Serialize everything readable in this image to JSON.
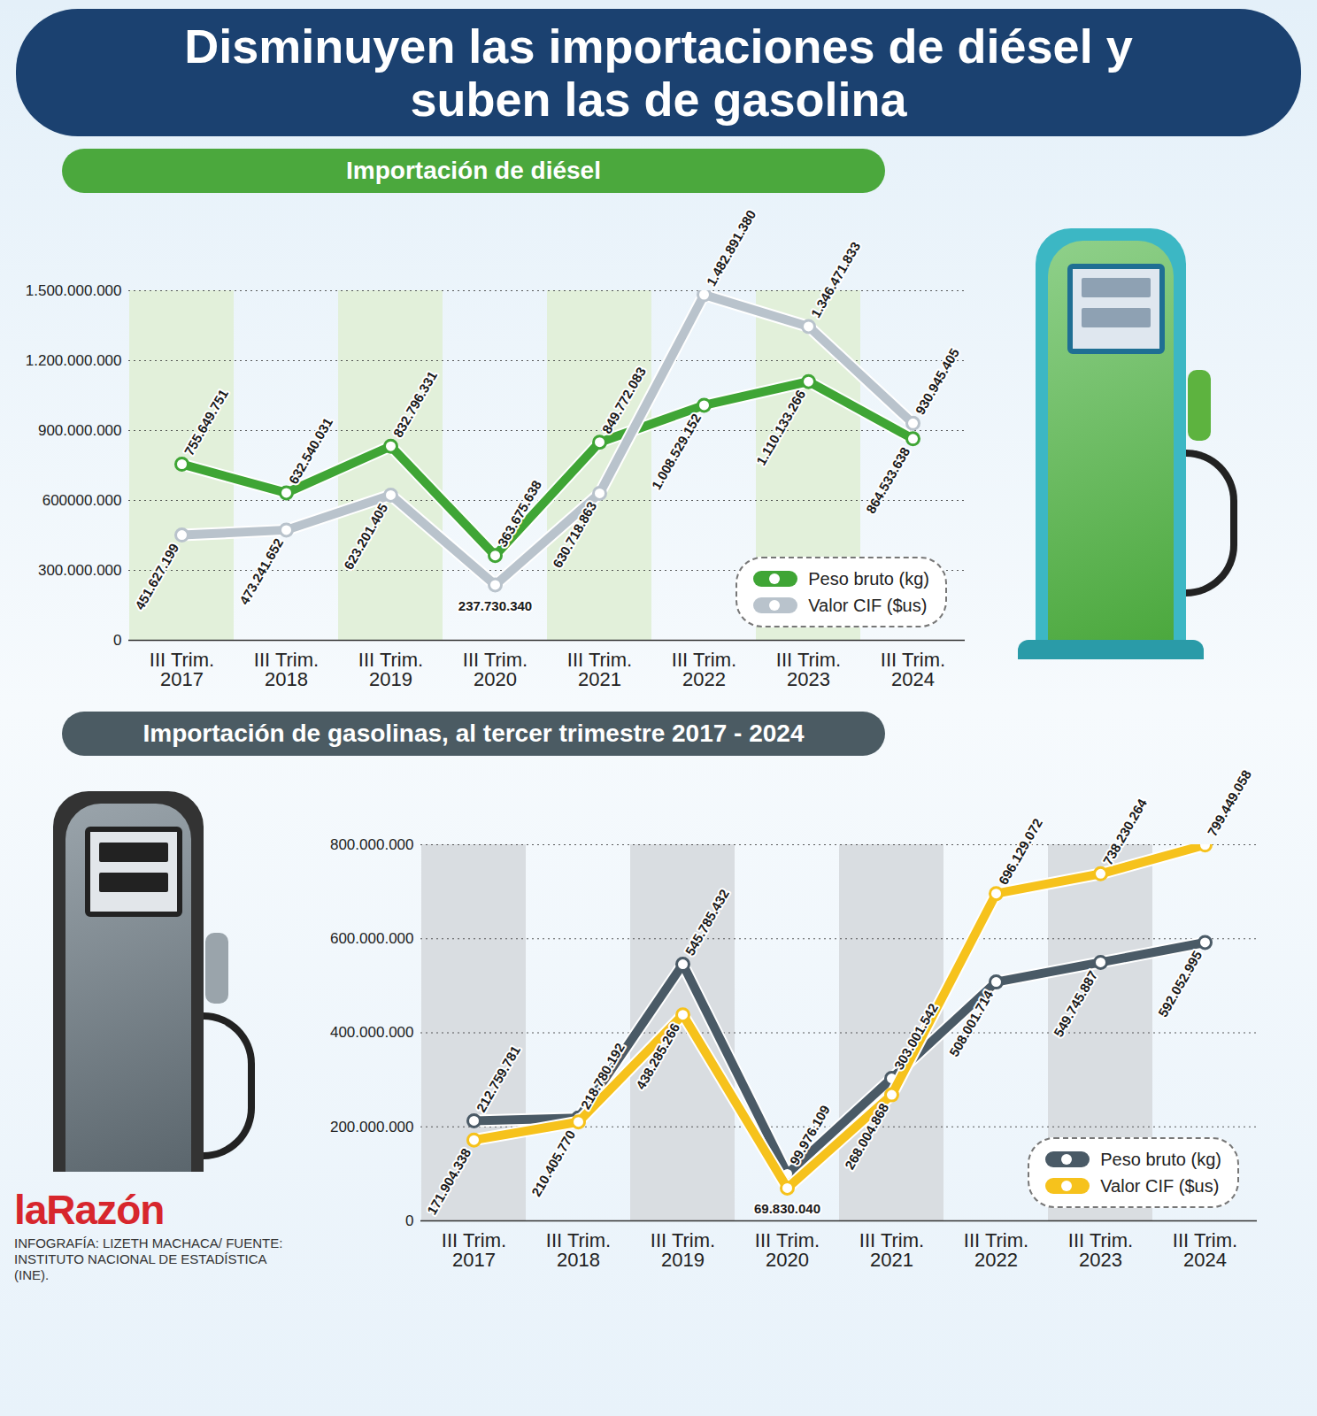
{
  "title": "Disminuyen las importaciones de diésel y suben las de gasolina",
  "chart_data": [
    {
      "type": "line",
      "title": "Importación de diésel",
      "categories": [
        "III Trim. 2017",
        "III Trim. 2018",
        "III Trim. 2019",
        "III Trim. 2020",
        "III Trim. 2021",
        "III Trim. 2022",
        "III Trim. 2023",
        "III Trim. 2024"
      ],
      "series": [
        {
          "name": "Peso bruto (kg)",
          "color": "#3fa535",
          "values": [
            755649751,
            632540031,
            832796331,
            363675638,
            849772083,
            1008529152,
            1110133266,
            864533638
          ],
          "value_labels": [
            "755.649.751",
            "632.540.031",
            "832.796.331",
            "363.675.638",
            "849.772.083",
            "1.008.529.152",
            "1.110.133.266",
            "864.533.638"
          ]
        },
        {
          "name": "Valor CIF ($us)",
          "color": "#b9c3cc",
          "values": [
            451627199,
            473241652,
            623201405,
            237730340,
            630718863,
            1482891380,
            1346471833,
            930945405
          ],
          "value_labels": [
            "451.627.199",
            "473.241.652",
            "623.201.405",
            "237.730.340",
            "630.718.863",
            "1.482.891.380",
            "1.346.471.833",
            "930.945.405"
          ]
        }
      ],
      "ylim": [
        0,
        1500000000
      ],
      "yticks": [
        0,
        {
          "value": 300000000,
          "label": "300.000.000"
        },
        {
          "value": 600000000,
          "label": "600000.000"
        },
        {
          "value": 900000000,
          "label": "900.000.000"
        },
        {
          "value": 1200000000,
          "label": "1.200.000.000"
        },
        {
          "value": 1500000000,
          "label": "1.500.000.000"
        }
      ],
      "grid": true,
      "legend": "bottom-right",
      "data_labels": true,
      "marker": "circle"
    },
    {
      "type": "line",
      "title": "Importación de gasolinas, al tercer trimestre 2017 - 2024",
      "categories": [
        "III Trim. 2017",
        "III Trim. 2018",
        "III Trim. 2019",
        "III Trim. 2020",
        "III Trim. 2021",
        "III Trim. 2022",
        "III Trim. 2023",
        "III Trim. 2024"
      ],
      "series": [
        {
          "name": "Peso bruto (kg)",
          "color": "#4a5a66",
          "values": [
            212759781,
            218780192,
            545785432,
            99976109,
            303001542,
            508001714,
            549745887,
            592052995
          ],
          "value_labels": [
            "212.759.781",
            "218.780.192",
            "545.785.432",
            "99.976.109",
            "303.001.542",
            "508.001.714",
            "549.745.887",
            "592.052.995"
          ]
        },
        {
          "name": "Valor CIF ($us)",
          "color": "#f6c21c",
          "values": [
            171904338,
            210405770,
            438285266,
            69830040,
            268004868,
            696129072,
            738230264,
            799449058
          ],
          "value_labels": [
            "171.904.338",
            "210.405.770",
            "438.285.266",
            "69.830.040",
            "268.004.868",
            "696.129.072",
            "738.230.264",
            "799.449.058"
          ]
        }
      ],
      "ylim": [
        0,
        800000000
      ],
      "yticks": [
        0,
        {
          "value": 200000000,
          "label": "200.000.000"
        },
        {
          "value": 400000000,
          "label": "400.000.000"
        },
        {
          "value": 600000000,
          "label": "600.000.000"
        },
        {
          "value": 800000000,
          "label": "800.000.000"
        }
      ],
      "grid": true,
      "legend": "bottom-right",
      "data_labels": true,
      "marker": "circle"
    }
  ],
  "credits": {
    "logo": "laRazón",
    "source": "INFOGRAFÍA: LIZETH MACHACA/ FUENTE: INSTITUTO NACIONAL DE ESTADÍSTICA (INE)."
  }
}
